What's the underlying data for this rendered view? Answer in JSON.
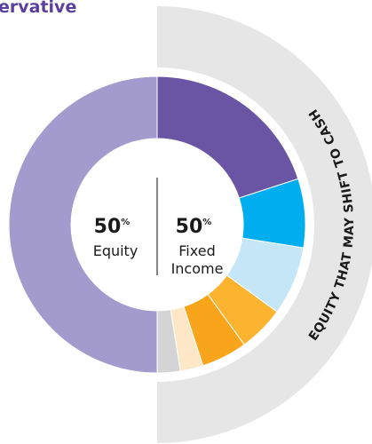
{
  "chart_data": {
    "type": "pie",
    "title": "ervative",
    "values": [
      20,
      7.5,
      7.5,
      5,
      5,
      2.5,
      2.5,
      50
    ],
    "colors": [
      "#6a55a5",
      "#00aeef",
      "#c4e6f7",
      "#fbb330",
      "#f9a51b",
      "#fde7c6",
      "#d4d4d5",
      "#a39bcd"
    ],
    "annotation": "EQUITY THAT MAY SHIFT TO CASH",
    "summary": [
      {
        "value": 50,
        "unit": "%",
        "name_lines": [
          "Equity"
        ]
      },
      {
        "value": 50,
        "unit": "%",
        "name_lines": [
          "Fixed",
          "Income"
        ]
      }
    ]
  }
}
